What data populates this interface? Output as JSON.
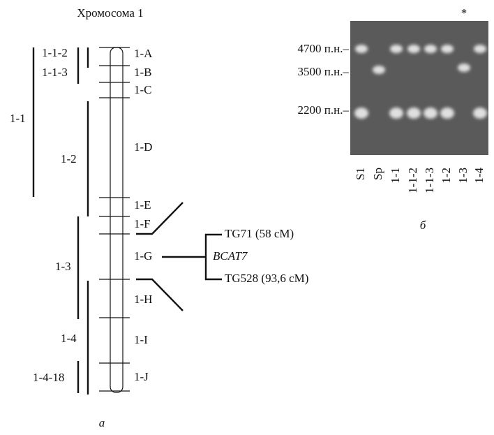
{
  "panel_a": {
    "title": "Хромосома 1",
    "segments": [
      "1-A",
      "1-B",
      "1-C",
      "1-D",
      "1-E",
      "1-F",
      "1-G",
      "1-H",
      "1-I",
      "1-J"
    ],
    "deletions": [
      "1-1-2",
      "1-1-3",
      "1-1",
      "1-2",
      "1-3",
      "1-4",
      "1-4-18"
    ],
    "markers": [
      "TG71 (58 cM)",
      "BCAT7",
      "TG528 (93,6 cM)"
    ],
    "label": "а"
  },
  "panel_b": {
    "size_labels": [
      "4700 п.н.–",
      "3500 п.н.–",
      "2200 п.н.–"
    ],
    "lanes": [
      "S1",
      "Sp",
      "1-1",
      "1-1-2",
      "1-1-3",
      "1-2",
      "1-3",
      "1-4"
    ],
    "mark": "*",
    "label": "б"
  }
}
